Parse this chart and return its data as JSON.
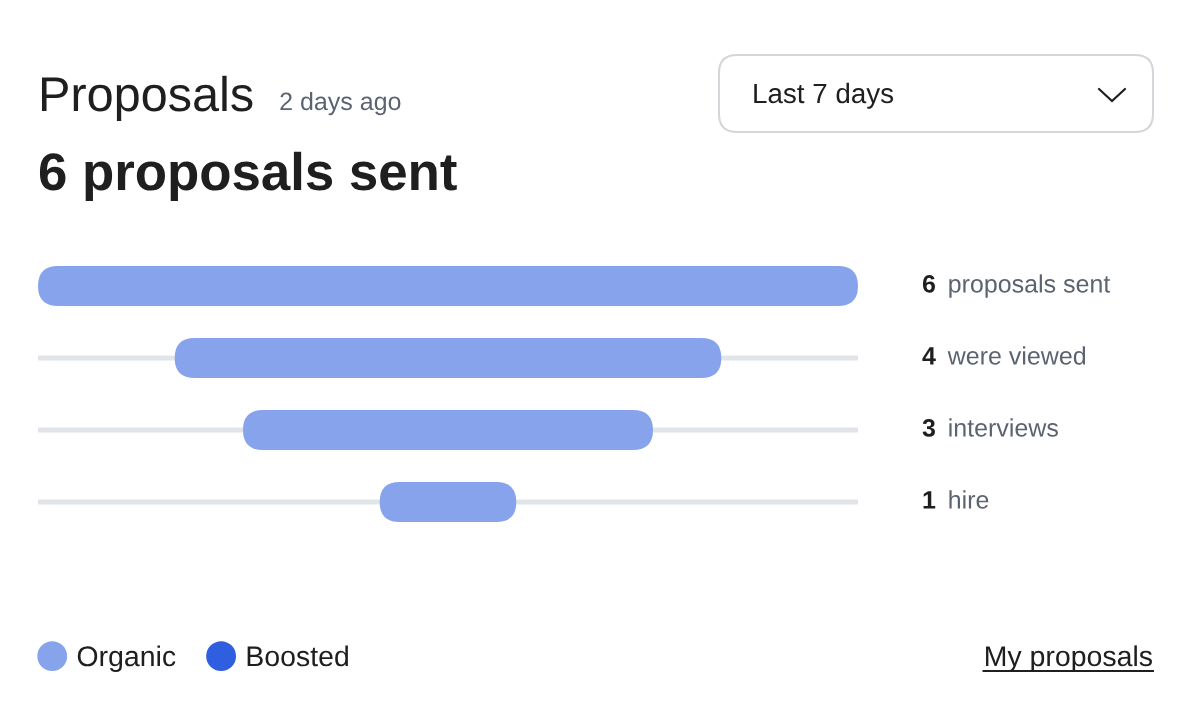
{
  "chart_data": {
    "type": "other",
    "title": "Proposals",
    "subtitle": "6 proposals sent",
    "categories": [
      "proposals sent",
      "were viewed",
      "interviews",
      "hire"
    ],
    "series": [
      {
        "name": "Organic",
        "color": "#87a3eb",
        "values": [
          6,
          4,
          3,
          1
        ]
      },
      {
        "name": "Boosted",
        "color": "#2f5fe0",
        "values": [
          null,
          null,
          null,
          null
        ]
      }
    ],
    "data_labels": true,
    "legend": "bottom left",
    "annotations": [
      "2 days ago",
      "Last 7 days",
      "My proposals"
    ]
  }
}
